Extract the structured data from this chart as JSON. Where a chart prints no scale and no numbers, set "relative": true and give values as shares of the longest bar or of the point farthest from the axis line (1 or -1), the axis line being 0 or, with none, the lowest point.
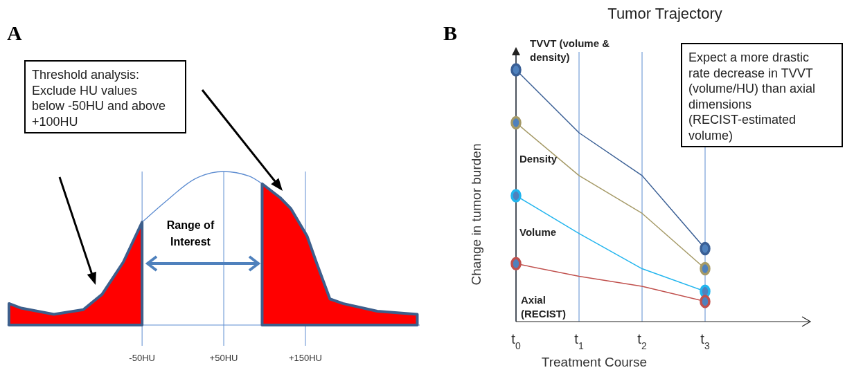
{
  "chart_data": [
    {
      "type": "area",
      "relative": true,
      "annotations": [
        "A",
        "Threshold analysis: Exclude HU values below -50HU and above +100HU",
        "Range of Interest"
      ],
      "xlim": [
        -215,
        290
      ],
      "xticks": [
        {
          "value": -50,
          "label": "-50HU"
        },
        {
          "value": 50,
          "label": "+50HU"
        },
        {
          "value": 150,
          "label": "+150HU"
        }
      ],
      "grid": "x",
      "series": [
        {
          "type": "line",
          "color": "#5b8bd0",
          "x": [
            -50,
            -20,
            14,
            50,
            81,
            97
          ],
          "values": [
            0.67,
            0.81,
            0.95,
            1,
            0.97,
            0.92
          ]
        },
        {
          "color": "#ff0000",
          "x": [
            -213,
            -198,
            -158,
            -122,
            -99,
            -73,
            -50
          ],
          "values": [
            0.14,
            0.11,
            0.07,
            0.1,
            0.2,
            0.41,
            0.67
          ]
        },
        {
          "color": "#ff0000",
          "x": [
            97,
            119,
            132,
            152,
            164,
            180,
            196,
            238,
            287
          ],
          "values": [
            0.92,
            0.83,
            0.76,
            0.58,
            0.4,
            0.17,
            0.14,
            0.09,
            0.07
          ]
        }
      ]
    },
    {
      "type": "line",
      "title": "Tumor Trajectory",
      "xlabel": "Treatment Course",
      "ylabel": "Change in tumor burden",
      "relative": true,
      "categories": [
        "t$_{0}$",
        "t$_{1}$",
        "t$_{2}$",
        "t$_{3}$"
      ],
      "grid": "x",
      "annotations": [
        "B",
        "Expect a more drastic rate decrease in TVVT (volume/HU) than axial dimensions (RECIST-estimated volume)"
      ],
      "series": [
        {
          "name": "TVVT (volume & density)",
          "color": "#3a5f95",
          "values": [
            1,
            0.75,
            0.58,
            0.29
          ]
        },
        {
          "name": "Density",
          "color": "#a59a67",
          "values": [
            0.79,
            0.58,
            0.43,
            0.21
          ]
        },
        {
          "name": "Volume",
          "color": "#22b5ee",
          "values": [
            0.5,
            0.35,
            0.21,
            0.12
          ]
        },
        {
          "name": "Axial (RECIST)",
          "color": "#c0504d",
          "values": [
            0.23,
            0.18,
            0.14,
            0.08
          ]
        },
        {
          "type": "scatter",
          "marker": "circle",
          "color": "#3a5f95",
          "values": [
            1,
            null,
            null,
            0.29
          ]
        },
        {
          "type": "scatter",
          "marker": "circle",
          "color": "#a59a67",
          "values": [
            0.79,
            null,
            null,
            0.21
          ]
        },
        {
          "type": "scatter",
          "marker": "circle",
          "color": "#22b5ee",
          "values": [
            0.5,
            null,
            null,
            0.12
          ]
        },
        {
          "type": "scatter",
          "marker": "circle",
          "color": "#c0504d",
          "values": [
            0.23,
            null,
            null,
            0.08
          ]
        }
      ]
    }
  ]
}
